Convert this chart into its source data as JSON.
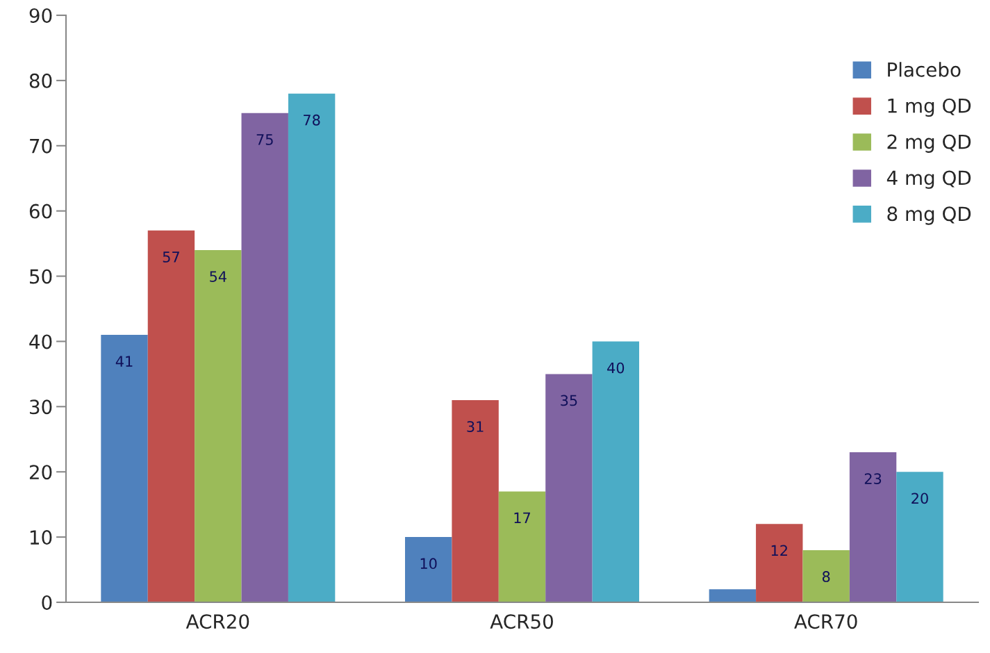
{
  "chart_data": {
    "type": "bar",
    "categories": [
      "ACR20",
      "ACR50",
      "ACR70"
    ],
    "series": [
      {
        "name": "Placebo",
        "color": "#4f81bd",
        "values": [
          41,
          10,
          2
        ],
        "value_labels": [
          "41",
          "10",
          null
        ]
      },
      {
        "name": "1 mg QD",
        "color": "#c0504d",
        "values": [
          57,
          31,
          12
        ],
        "value_labels": [
          "57",
          "31",
          "12"
        ]
      },
      {
        "name": "2 mg QD",
        "color": "#9bbb59",
        "values": [
          54,
          17,
          8
        ],
        "value_labels": [
          "54",
          "17",
          "8"
        ]
      },
      {
        "name": "4 mg QD",
        "color": "#8064a2",
        "values": [
          75,
          35,
          23
        ],
        "value_labels": [
          "75",
          "35",
          "23"
        ]
      },
      {
        "name": "8 mg QD",
        "color": "#4bacc6",
        "values": [
          78,
          40,
          20
        ],
        "value_labels": [
          "78",
          "40",
          "20"
        ]
      }
    ],
    "ylim": [
      0,
      90
    ],
    "yticks": [
      0,
      10,
      20,
      30,
      40,
      50,
      60,
      70,
      80,
      90
    ],
    "grid": false,
    "legend": "top right"
  }
}
